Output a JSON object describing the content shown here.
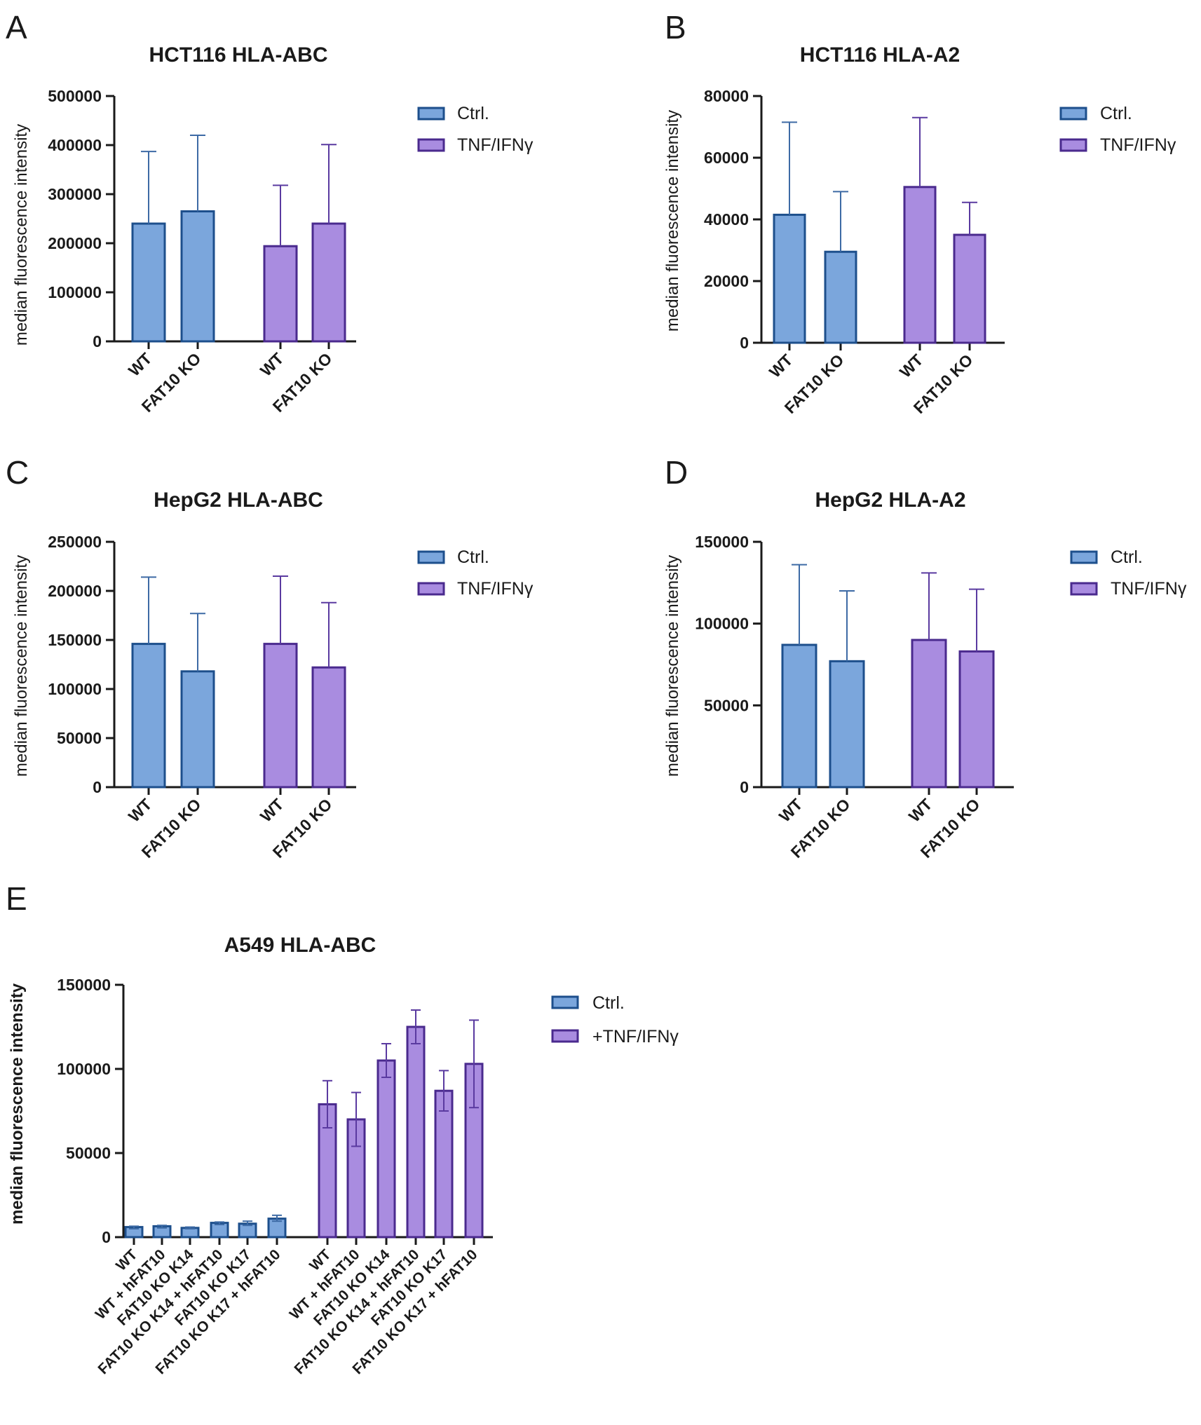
{
  "figure": {
    "colors": {
      "ctrl_fill": "#7ba6dc",
      "ctrl_stroke": "#1d4f8c",
      "tnf_fill": "#a98ce0",
      "tnf_stroke": "#4a2a8e",
      "ctrl_err": "#3d6aa5",
      "tnf_err": "#5a3aa0"
    }
  },
  "chart_data": [
    {
      "panel": "A",
      "type": "bar",
      "title": "HCT116 HLA-ABC",
      "ylabel": "median fluorescence intensity",
      "ylim": [
        0,
        500000
      ],
      "yticks": [
        0,
        100000,
        200000,
        300000,
        400000,
        500000
      ],
      "ytick_labels": [
        "0",
        "100000",
        "200000",
        "300000",
        "400000",
        "500000"
      ],
      "legend": [
        "Ctrl.",
        "TNF/IFNγ"
      ],
      "legend_position": "top-right",
      "bars": [
        {
          "label": "WT",
          "series": "Ctrl.",
          "value": 240000,
          "err_low": 240000,
          "err_high": 387000
        },
        {
          "label": "FAT10 KO",
          "series": "Ctrl.",
          "value": 265000,
          "err_low": 265000,
          "err_high": 420000
        },
        {
          "label": "WT",
          "series": "TNF/IFNγ",
          "value": 194000,
          "err_low": 194000,
          "err_high": 318000
        },
        {
          "label": "FAT10 KO",
          "series": "TNF/IFNγ",
          "value": 240000,
          "err_low": 240000,
          "err_high": 401000
        }
      ]
    },
    {
      "panel": "B",
      "type": "bar",
      "title": "HCT116 HLA-A2",
      "ylabel": "median fluorescence intensity",
      "ylim": [
        0,
        80000
      ],
      "yticks": [
        0,
        20000,
        40000,
        60000,
        80000
      ],
      "ytick_labels": [
        "0",
        "20000",
        "40000",
        "60000",
        "80000"
      ],
      "legend": [
        "Ctrl.",
        "TNF/IFNγ"
      ],
      "legend_position": "top-right",
      "bars": [
        {
          "label": "WT",
          "series": "Ctrl.",
          "value": 41500,
          "err_low": 41500,
          "err_high": 71500
        },
        {
          "label": "FAT10 KO",
          "series": "Ctrl.",
          "value": 29500,
          "err_low": 29500,
          "err_high": 49000
        },
        {
          "label": "WT",
          "series": "TNF/IFNγ",
          "value": 50500,
          "err_low": 50500,
          "err_high": 73000
        },
        {
          "label": "FAT10 KO",
          "series": "TNF/IFNγ",
          "value": 35000,
          "err_low": 35000,
          "err_high": 45500
        }
      ]
    },
    {
      "panel": "C",
      "type": "bar",
      "title": "HepG2 HLA-ABC",
      "ylabel": "median fluorescence intensity",
      "ylim": [
        0,
        250000
      ],
      "yticks": [
        0,
        50000,
        100000,
        150000,
        200000,
        250000
      ],
      "ytick_labels": [
        "0",
        "50000",
        "100000",
        "150000",
        "200000",
        "250000"
      ],
      "legend": [
        "Ctrl.",
        "TNF/IFNγ"
      ],
      "legend_position": "top-right",
      "bars": [
        {
          "label": "WT",
          "series": "Ctrl.",
          "value": 146000,
          "err_low": 146000,
          "err_high": 214000
        },
        {
          "label": "FAT10 KO",
          "series": "Ctrl.",
          "value": 118000,
          "err_low": 118000,
          "err_high": 177000
        },
        {
          "label": "WT",
          "series": "TNF/IFNγ",
          "value": 146000,
          "err_low": 146000,
          "err_high": 215000
        },
        {
          "label": "FAT10 KO",
          "series": "TNF/IFNγ",
          "value": 122000,
          "err_low": 122000,
          "err_high": 188000
        }
      ]
    },
    {
      "panel": "D",
      "type": "bar",
      "title": "HepG2 HLA-A2",
      "ylabel": "median fluorescence intensity",
      "ylim": [
        0,
        150000
      ],
      "yticks": [
        0,
        50000,
        100000,
        150000
      ],
      "ytick_labels": [
        "0",
        "50000",
        "100000",
        "150000"
      ],
      "legend": [
        "Ctrl.",
        "TNF/IFNγ"
      ],
      "legend_position": "top-right",
      "bars": [
        {
          "label": "WT",
          "series": "Ctrl.",
          "value": 87000,
          "err_low": 87000,
          "err_high": 136000
        },
        {
          "label": "FAT10 KO",
          "series": "Ctrl.",
          "value": 77000,
          "err_low": 77000,
          "err_high": 120000
        },
        {
          "label": "WT",
          "series": "TNF/IFNγ",
          "value": 90000,
          "err_low": 90000,
          "err_high": 131000
        },
        {
          "label": "FAT10 KO",
          "series": "TNF/IFNγ",
          "value": 83000,
          "err_low": 83000,
          "err_high": 121000
        }
      ]
    },
    {
      "panel": "E",
      "type": "bar",
      "title": "A549 HLA-ABC",
      "ylabel": "median fluorescence intensity",
      "ylim": [
        0,
        150000
      ],
      "yticks": [
        0,
        50000,
        100000,
        150000
      ],
      "ytick_labels": [
        "0",
        "50000",
        "100000",
        "150000"
      ],
      "legend": [
        "Ctrl.",
        "+TNF/IFNγ"
      ],
      "legend_position": "top-right",
      "bars": [
        {
          "label": "WT",
          "series": "Ctrl.",
          "value": 6000,
          "err_low": 5000,
          "err_high": 6500
        },
        {
          "label": "WT + hFAT10",
          "series": "Ctrl.",
          "value": 6500,
          "err_low": 5500,
          "err_high": 7000
        },
        {
          "label": "FAT10 KO K14",
          "series": "Ctrl.",
          "value": 5500,
          "err_low": 5000,
          "err_high": 6000
        },
        {
          "label": "FAT10 KO K14 + hFAT10",
          "series": "Ctrl.",
          "value": 8500,
          "err_low": 7500,
          "err_high": 9000
        },
        {
          "label": "FAT10 KO K17",
          "series": "Ctrl.",
          "value": 8000,
          "err_low": 7000,
          "err_high": 9500
        },
        {
          "label": "FAT10 KO K17 + hFAT10",
          "series": "Ctrl.",
          "value": 11000,
          "err_low": 9500,
          "err_high": 13000
        },
        {
          "label": "WT",
          "series": "+TNF/IFNγ",
          "value": 79000,
          "err_low": 65000,
          "err_high": 93000
        },
        {
          "label": "WT + hFAT10",
          "series": "+TNF/IFNγ",
          "value": 70000,
          "err_low": 54000,
          "err_high": 86000
        },
        {
          "label": "FAT10 KO K14",
          "series": "+TNF/IFNγ",
          "value": 105000,
          "err_low": 95000,
          "err_high": 115000
        },
        {
          "label": "FAT10 KO K14 + hFAT10",
          "series": "+TNF/IFNγ",
          "value": 125000,
          "err_low": 115000,
          "err_high": 135000
        },
        {
          "label": "FAT10 KO K17",
          "series": "+TNF/IFNγ",
          "value": 87000,
          "err_low": 75000,
          "err_high": 99000
        },
        {
          "label": "FAT10 KO K17 + hFAT10",
          "series": "+TNF/IFNγ",
          "value": 103000,
          "err_low": 77000,
          "err_high": 129000
        }
      ]
    }
  ]
}
